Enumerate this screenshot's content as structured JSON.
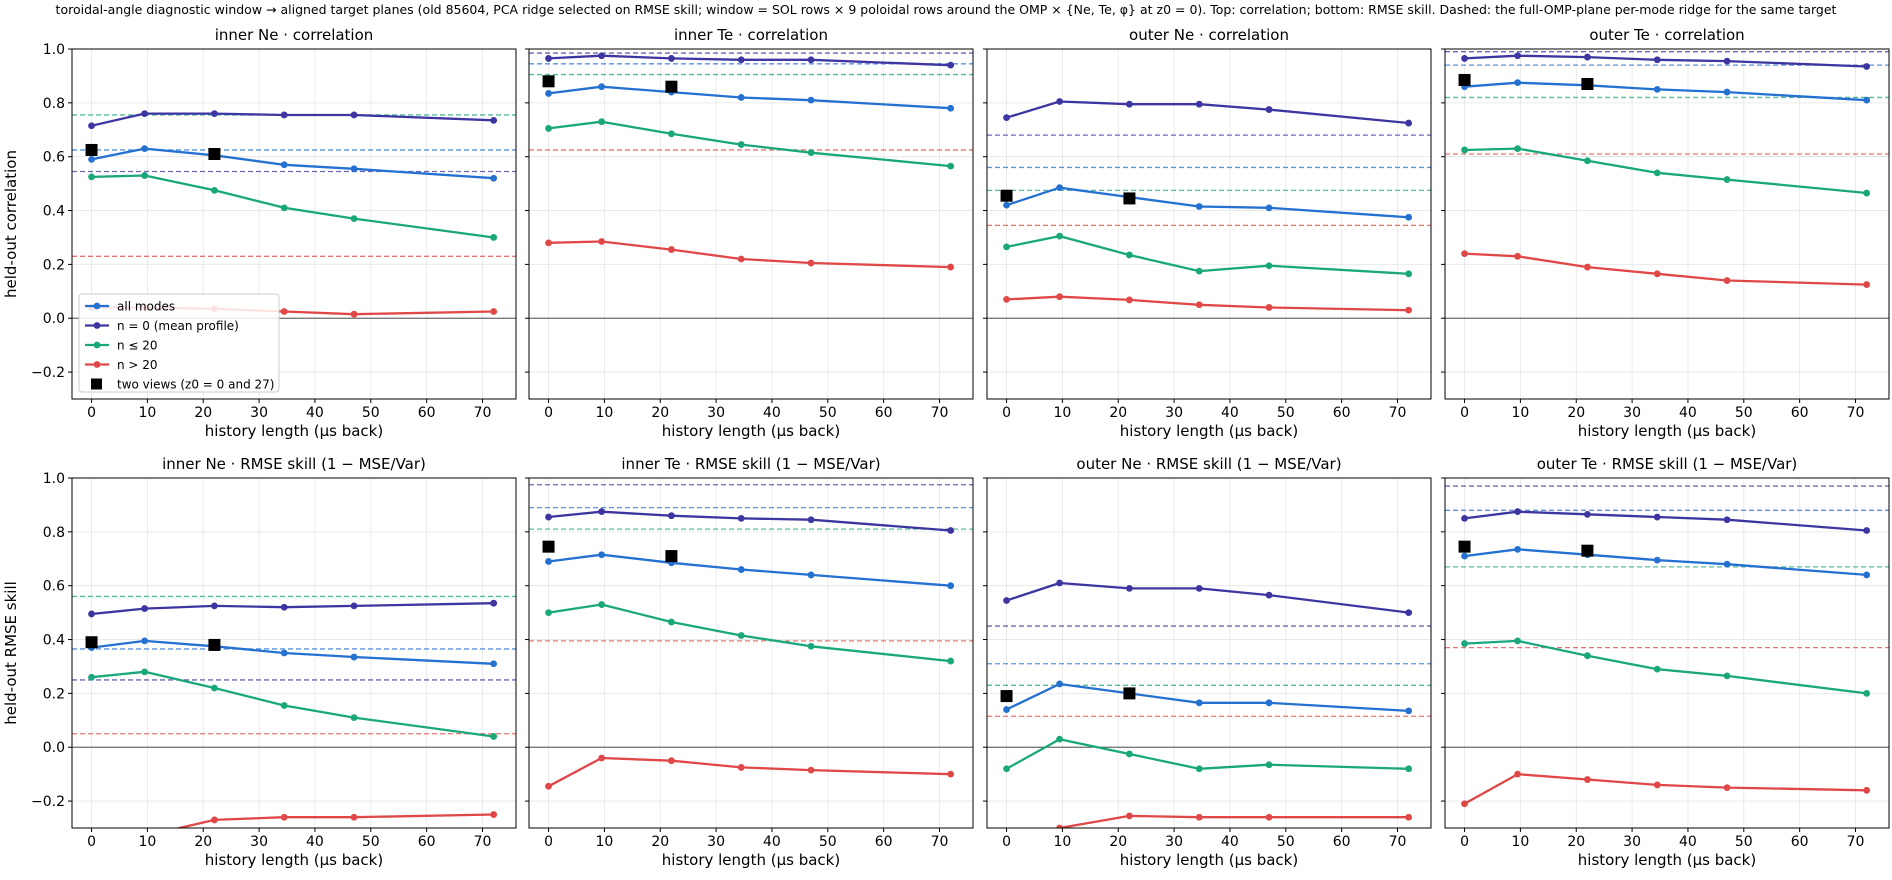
{
  "suptitle": "toroidal-angle diagnostic window → aligned target planes (old 85604, PCA ridge selected on RMSE skill; window = SOL rows × 9 poloidal rows around the OMP × {Ne, Te, φ} at z0 = 0). Top: correlation; bottom: RMSE skill. Dashed: the full-OMP-plane per-mode ridge for the same target",
  "colors": {
    "all": "#2471d1",
    "n0": "#3d35a0",
    "le20": "#1aa87a",
    "gt20": "#e04848"
  },
  "legend": [
    "all modes",
    "n = 0 (mean profile)",
    "n ≤ 20",
    "n > 20",
    "two views (z0 = 0 and 27)"
  ],
  "chart_data": [
    {
      "type": "line",
      "title": "inner Ne  ·  correlation",
      "xlabel": "history length (µs back)",
      "ylabel": "held-out correlation",
      "xlim": [
        -3.5,
        76
      ],
      "ylim": [
        -0.3,
        1.0
      ],
      "xticks": [
        0,
        10,
        20,
        30,
        40,
        50,
        60,
        70
      ],
      "yticks": [
        -0.2,
        0.0,
        0.2,
        0.4,
        0.6,
        0.8,
        1.0
      ],
      "x": [
        0,
        9.5,
        22,
        34.5,
        47,
        72
      ],
      "series": [
        {
          "name": "all modes",
          "key": "all",
          "values": [
            0.59,
            0.63,
            0.605,
            0.57,
            0.555,
            0.52
          ],
          "ridge": 0.625
        },
        {
          "name": "n = 0 (mean profile)",
          "key": "n0",
          "values": [
            0.715,
            0.76,
            0.76,
            0.755,
            0.755,
            0.735
          ],
          "ridge": 0.545
        },
        {
          "name": "n ≤ 20",
          "key": "le20",
          "values": [
            0.525,
            0.53,
            0.475,
            0.41,
            0.37,
            0.3
          ],
          "ridge": 0.755
        },
        {
          "name": "n > 20",
          "key": "gt20",
          "values": [
            0.04,
            0.04,
            0.035,
            0.025,
            0.015,
            0.025
          ],
          "ridge": 0.23
        }
      ],
      "two_views": [
        {
          "x": 0,
          "y": 0.625
        },
        {
          "x": 22,
          "y": 0.61
        }
      ],
      "legend": "lower-left"
    },
    {
      "type": "line",
      "title": "inner Te  ·  correlation",
      "xlabel": "history length (µs back)",
      "ylabel": "",
      "xlim": [
        -3.5,
        76
      ],
      "ylim": [
        -0.3,
        1.0
      ],
      "xticks": [
        0,
        10,
        20,
        30,
        40,
        50,
        60,
        70
      ],
      "yticks": [
        -0.2,
        0.0,
        0.2,
        0.4,
        0.6,
        0.8,
        1.0
      ],
      "x": [
        0,
        9.5,
        22,
        34.5,
        47,
        72
      ],
      "series": [
        {
          "name": "all modes",
          "key": "all",
          "values": [
            0.835,
            0.86,
            0.84,
            0.82,
            0.81,
            0.78
          ],
          "ridge": 0.945
        },
        {
          "name": "n = 0 (mean profile)",
          "key": "n0",
          "values": [
            0.965,
            0.975,
            0.965,
            0.96,
            0.96,
            0.94
          ],
          "ridge": 0.985
        },
        {
          "name": "n ≤ 20",
          "key": "le20",
          "values": [
            0.705,
            0.73,
            0.685,
            0.645,
            0.615,
            0.565
          ],
          "ridge": 0.905
        },
        {
          "name": "n > 20",
          "key": "gt20",
          "values": [
            0.28,
            0.285,
            0.255,
            0.22,
            0.205,
            0.19
          ],
          "ridge": 0.625
        }
      ],
      "two_views": [
        {
          "x": 0,
          "y": 0.88
        },
        {
          "x": 22,
          "y": 0.86
        }
      ]
    },
    {
      "type": "line",
      "title": "outer Ne  ·  correlation",
      "xlabel": "history length (µs back)",
      "ylabel": "",
      "xlim": [
        -3.5,
        76
      ],
      "ylim": [
        -0.3,
        1.0
      ],
      "xticks": [
        0,
        10,
        20,
        30,
        40,
        50,
        60,
        70
      ],
      "yticks": [
        -0.2,
        0.0,
        0.2,
        0.4,
        0.6,
        0.8,
        1.0
      ],
      "x": [
        0,
        9.5,
        22,
        34.5,
        47,
        72
      ],
      "series": [
        {
          "name": "all modes",
          "key": "all",
          "values": [
            0.42,
            0.485,
            0.45,
            0.415,
            0.41,
            0.375
          ],
          "ridge": 0.56
        },
        {
          "name": "n = 0 (mean profile)",
          "key": "n0",
          "values": [
            0.745,
            0.805,
            0.795,
            0.795,
            0.775,
            0.725
          ],
          "ridge": 0.68
        },
        {
          "name": "n ≤ 20",
          "key": "le20",
          "values": [
            0.265,
            0.305,
            0.235,
            0.175,
            0.195,
            0.165
          ],
          "ridge": 0.475
        },
        {
          "name": "n > 20",
          "key": "gt20",
          "values": [
            0.07,
            0.08,
            0.068,
            0.05,
            0.04,
            0.03
          ],
          "ridge": 0.345
        }
      ],
      "two_views": [
        {
          "x": 0,
          "y": 0.455
        },
        {
          "x": 22,
          "y": 0.445
        }
      ]
    },
    {
      "type": "line",
      "title": "outer Te  ·  correlation",
      "xlabel": "history length (µs back)",
      "ylabel": "",
      "xlim": [
        -3.5,
        76
      ],
      "ylim": [
        -0.3,
        1.0
      ],
      "xticks": [
        0,
        10,
        20,
        30,
        40,
        50,
        60,
        70
      ],
      "yticks": [
        -0.2,
        0.0,
        0.2,
        0.4,
        0.6,
        0.8,
        1.0
      ],
      "x": [
        0,
        9.5,
        22,
        34.5,
        47,
        72
      ],
      "series": [
        {
          "name": "all modes",
          "key": "all",
          "values": [
            0.86,
            0.875,
            0.865,
            0.85,
            0.84,
            0.81
          ],
          "ridge": 0.94
        },
        {
          "name": "n = 0 (mean profile)",
          "key": "n0",
          "values": [
            0.965,
            0.975,
            0.97,
            0.96,
            0.955,
            0.935
          ],
          "ridge": 0.99
        },
        {
          "name": "n ≤ 20",
          "key": "le20",
          "values": [
            0.625,
            0.63,
            0.585,
            0.54,
            0.515,
            0.465
          ],
          "ridge": 0.82
        },
        {
          "name": "n > 20",
          "key": "gt20",
          "values": [
            0.24,
            0.23,
            0.19,
            0.165,
            0.14,
            0.125
          ],
          "ridge": 0.61
        }
      ],
      "two_views": [
        {
          "x": 0,
          "y": 0.885
        },
        {
          "x": 22,
          "y": 0.87
        }
      ]
    },
    {
      "type": "line",
      "title": "inner Ne  ·  RMSE skill (1 − MSE/Var)",
      "xlabel": "history length (µs back)",
      "ylabel": "held-out RMSE skill",
      "xlim": [
        -3.5,
        76
      ],
      "ylim": [
        -0.3,
        1.0
      ],
      "xticks": [
        0,
        10,
        20,
        30,
        40,
        50,
        60,
        70
      ],
      "yticks": [
        -0.2,
        0.0,
        0.2,
        0.4,
        0.6,
        0.8,
        1.0
      ],
      "x": [
        0,
        9.5,
        22,
        34.5,
        47,
        72
      ],
      "series": [
        {
          "name": "all modes",
          "key": "all",
          "values": [
            0.37,
            0.395,
            0.375,
            0.35,
            0.335,
            0.31
          ],
          "ridge": 0.365
        },
        {
          "name": "n = 0 (mean profile)",
          "key": "n0",
          "values": [
            0.495,
            0.515,
            0.525,
            0.52,
            0.525,
            0.535
          ],
          "ridge": 0.25
        },
        {
          "name": "n ≤ 20",
          "key": "le20",
          "values": [
            0.26,
            0.28,
            0.22,
            0.155,
            0.11,
            0.04
          ],
          "ridge": 0.56
        },
        {
          "name": "n > 20",
          "key": "gt20",
          "values": [
            -0.35,
            -0.33,
            -0.27,
            -0.26,
            -0.26,
            -0.25
          ],
          "ridge": 0.05
        }
      ],
      "two_views": [
        {
          "x": 0,
          "y": 0.39
        },
        {
          "x": 22,
          "y": 0.38
        }
      ]
    },
    {
      "type": "line",
      "title": "inner Te  ·  RMSE skill (1 − MSE/Var)",
      "xlabel": "history length (µs back)",
      "ylabel": "",
      "xlim": [
        -3.5,
        76
      ],
      "ylim": [
        -0.3,
        1.0
      ],
      "xticks": [
        0,
        10,
        20,
        30,
        40,
        50,
        60,
        70
      ],
      "yticks": [
        -0.2,
        0.0,
        0.2,
        0.4,
        0.6,
        0.8,
        1.0
      ],
      "x": [
        0,
        9.5,
        22,
        34.5,
        47,
        72
      ],
      "series": [
        {
          "name": "all modes",
          "key": "all",
          "values": [
            0.69,
            0.715,
            0.685,
            0.66,
            0.64,
            0.6
          ],
          "ridge": 0.89
        },
        {
          "name": "n = 0 (mean profile)",
          "key": "n0",
          "values": [
            0.855,
            0.875,
            0.86,
            0.85,
            0.845,
            0.805
          ],
          "ridge": 0.975
        },
        {
          "name": "n ≤ 20",
          "key": "le20",
          "values": [
            0.5,
            0.53,
            0.465,
            0.415,
            0.375,
            0.32
          ],
          "ridge": 0.81
        },
        {
          "name": "n > 20",
          "key": "gt20",
          "values": [
            -0.145,
            -0.04,
            -0.05,
            -0.075,
            -0.085,
            -0.1
          ],
          "ridge": 0.395
        }
      ],
      "two_views": [
        {
          "x": 0,
          "y": 0.745
        },
        {
          "x": 22,
          "y": 0.71
        }
      ]
    },
    {
      "type": "line",
      "title": "outer Ne  ·  RMSE skill (1 − MSE/Var)",
      "xlabel": "history length (µs back)",
      "ylabel": "",
      "xlim": [
        -3.5,
        76
      ],
      "ylim": [
        -0.3,
        1.0
      ],
      "xticks": [
        0,
        10,
        20,
        30,
        40,
        50,
        60,
        70
      ],
      "yticks": [
        -0.2,
        0.0,
        0.2,
        0.4,
        0.6,
        0.8,
        1.0
      ],
      "x": [
        0,
        9.5,
        22,
        34.5,
        47,
        72
      ],
      "series": [
        {
          "name": "all modes",
          "key": "all",
          "values": [
            0.14,
            0.235,
            0.2,
            0.165,
            0.165,
            0.135
          ],
          "ridge": 0.31
        },
        {
          "name": "n = 0 (mean profile)",
          "key": "n0",
          "values": [
            0.545,
            0.61,
            0.59,
            0.59,
            0.565,
            0.5
          ],
          "ridge": 0.45
        },
        {
          "name": "n ≤ 20",
          "key": "le20",
          "values": [
            -0.08,
            0.03,
            -0.025,
            -0.08,
            -0.065,
            -0.08
          ],
          "ridge": 0.23
        },
        {
          "name": "n > 20",
          "key": "gt20",
          "values": [
            -0.34,
            -0.3,
            -0.255,
            -0.26,
            -0.26,
            -0.26
          ],
          "ridge": 0.115
        }
      ],
      "two_views": [
        {
          "x": 0,
          "y": 0.19
        },
        {
          "x": 22,
          "y": 0.2
        }
      ]
    },
    {
      "type": "line",
      "title": "outer Te  ·  RMSE skill (1 − MSE/Var)",
      "xlabel": "history length (µs back)",
      "ylabel": "",
      "xlim": [
        -3.5,
        76
      ],
      "ylim": [
        -0.3,
        1.0
      ],
      "xticks": [
        0,
        10,
        20,
        30,
        40,
        50,
        60,
        70
      ],
      "yticks": [
        -0.2,
        0.0,
        0.2,
        0.4,
        0.6,
        0.8,
        1.0
      ],
      "x": [
        0,
        9.5,
        22,
        34.5,
        47,
        72
      ],
      "series": [
        {
          "name": "all modes",
          "key": "all",
          "values": [
            0.71,
            0.735,
            0.715,
            0.695,
            0.68,
            0.64
          ],
          "ridge": 0.88
        },
        {
          "name": "n = 0 (mean profile)",
          "key": "n0",
          "values": [
            0.85,
            0.875,
            0.865,
            0.855,
            0.845,
            0.805
          ],
          "ridge": 0.97
        },
        {
          "name": "n ≤ 20",
          "key": "le20",
          "values": [
            0.385,
            0.395,
            0.34,
            0.29,
            0.265,
            0.2
          ],
          "ridge": 0.67
        },
        {
          "name": "n > 20",
          "key": "gt20",
          "values": [
            -0.21,
            -0.1,
            -0.12,
            -0.14,
            -0.15,
            -0.16
          ],
          "ridge": 0.37
        }
      ],
      "two_views": [
        {
          "x": 0,
          "y": 0.745
        },
        {
          "x": 22,
          "y": 0.73
        }
      ]
    }
  ]
}
